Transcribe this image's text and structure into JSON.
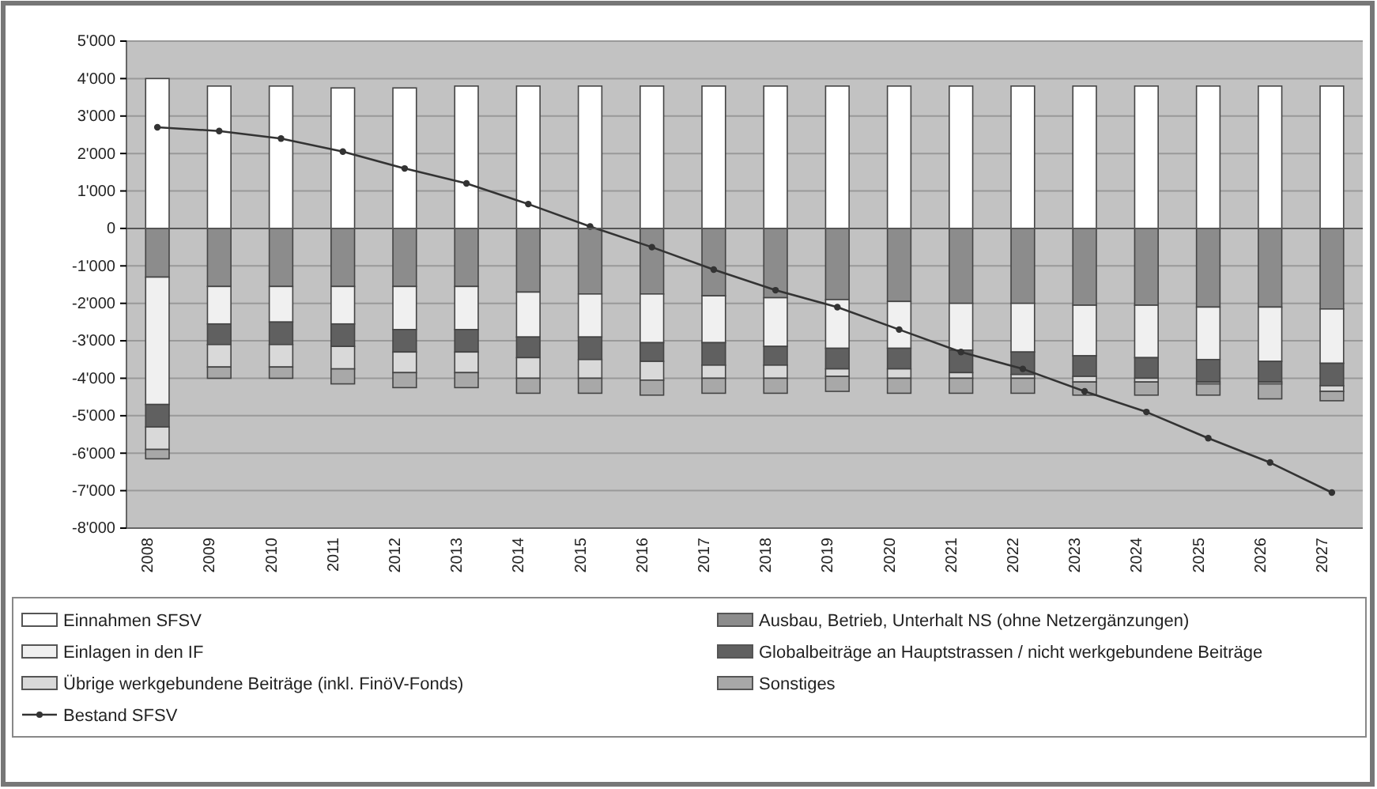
{
  "chart_data": {
    "type": "bar",
    "stacked": true,
    "categories": [
      "2008",
      "2009",
      "2010",
      "2011",
      "2012",
      "2013",
      "2014",
      "2015",
      "2016",
      "2017",
      "2018",
      "2019",
      "2020",
      "2021",
      "2022",
      "2023",
      "2024",
      "2025",
      "2026",
      "2027"
    ],
    "series": [
      {
        "name": "Einnahmen SFSV",
        "color": "#ffffff",
        "values": [
          4000,
          3800,
          3800,
          3750,
          3750,
          3800,
          3800,
          3800,
          3800,
          3800,
          3800,
          3800,
          3800,
          3800,
          3800,
          3800,
          3800,
          3800,
          3800,
          3800
        ]
      },
      {
        "name": "Ausbau, Betrieb, Unterhalt NS (ohne Netzergänzungen)",
        "color": "#8c8c8c",
        "values": [
          -1300,
          -1550,
          -1550,
          -1550,
          -1550,
          -1550,
          -1700,
          -1750,
          -1750,
          -1800,
          -1850,
          -1900,
          -1950,
          -2000,
          -2000,
          -2050,
          -2050,
          -2100,
          -2100,
          -2150
        ]
      },
      {
        "name": "Einlagen in den IF",
        "color": "#f0f0f0",
        "values": [
          -3400,
          -1000,
          -950,
          -1000,
          -1150,
          -1150,
          -1200,
          -1150,
          -1300,
          -1250,
          -1300,
          -1300,
          -1250,
          -1250,
          -1300,
          -1350,
          -1400,
          -1400,
          -1450,
          -1450
        ]
      },
      {
        "name": "Globalbeiträge an Hauptstrassen / nicht werkgebundene Beiträge",
        "color": "#606060",
        "values": [
          -600,
          -550,
          -600,
          -600,
          -600,
          -600,
          -550,
          -600,
          -500,
          -600,
          -500,
          -550,
          -550,
          -600,
          -600,
          -550,
          -550,
          -600,
          -550,
          -600
        ]
      },
      {
        "name": "Übrige werkgebundene Beiträge (inkl. FinöV-Fonds)",
        "color": "#d9d9d9",
        "values": [
          -600,
          -600,
          -600,
          -600,
          -550,
          -550,
          -550,
          -500,
          -500,
          -350,
          -350,
          -200,
          -250,
          -150,
          -100,
          -150,
          -100,
          -50,
          -50,
          -150
        ]
      },
      {
        "name": "Sonstiges",
        "color": "#a8a8a8",
        "values": [
          -250,
          -300,
          -300,
          -400,
          -400,
          -400,
          -400,
          -400,
          -400,
          -400,
          -400,
          -400,
          -400,
          -400,
          -400,
          -350,
          -350,
          -300,
          -400,
          -250
        ]
      },
      {
        "name": "Bestand SFSV",
        "type": "line",
        "color": "#333333",
        "values": [
          2700,
          2600,
          2400,
          2050,
          1600,
          1200,
          650,
          50,
          -500,
          -1100,
          -1650,
          -2100,
          -2700,
          -3300,
          -3750,
          -4350,
          -4900,
          -5600,
          -6250,
          -7050
        ]
      }
    ],
    "ylim": [
      -8000,
      5000
    ],
    "yticks": [
      {
        "value": 5000,
        "label": "5'000"
      },
      {
        "value": 4000,
        "label": "4'000"
      },
      {
        "value": 3000,
        "label": "3'000"
      },
      {
        "value": 2000,
        "label": "2'000"
      },
      {
        "value": 1000,
        "label": "1'000"
      },
      0,
      {
        "value": -1000,
        "label": "-1'000"
      },
      {
        "value": -2000,
        "label": "-2'000"
      },
      {
        "value": -3000,
        "label": "-3'000"
      },
      {
        "value": -4000,
        "label": "-4'000"
      },
      {
        "value": -5000,
        "label": "-5'000"
      },
      {
        "value": -6000,
        "label": "-6'000"
      },
      {
        "value": -7000,
        "label": "-7'000"
      },
      {
        "value": -8000,
        "label": "-8'000"
      }
    ],
    "grid": "y",
    "legend": "bottom",
    "marker": "circle"
  }
}
